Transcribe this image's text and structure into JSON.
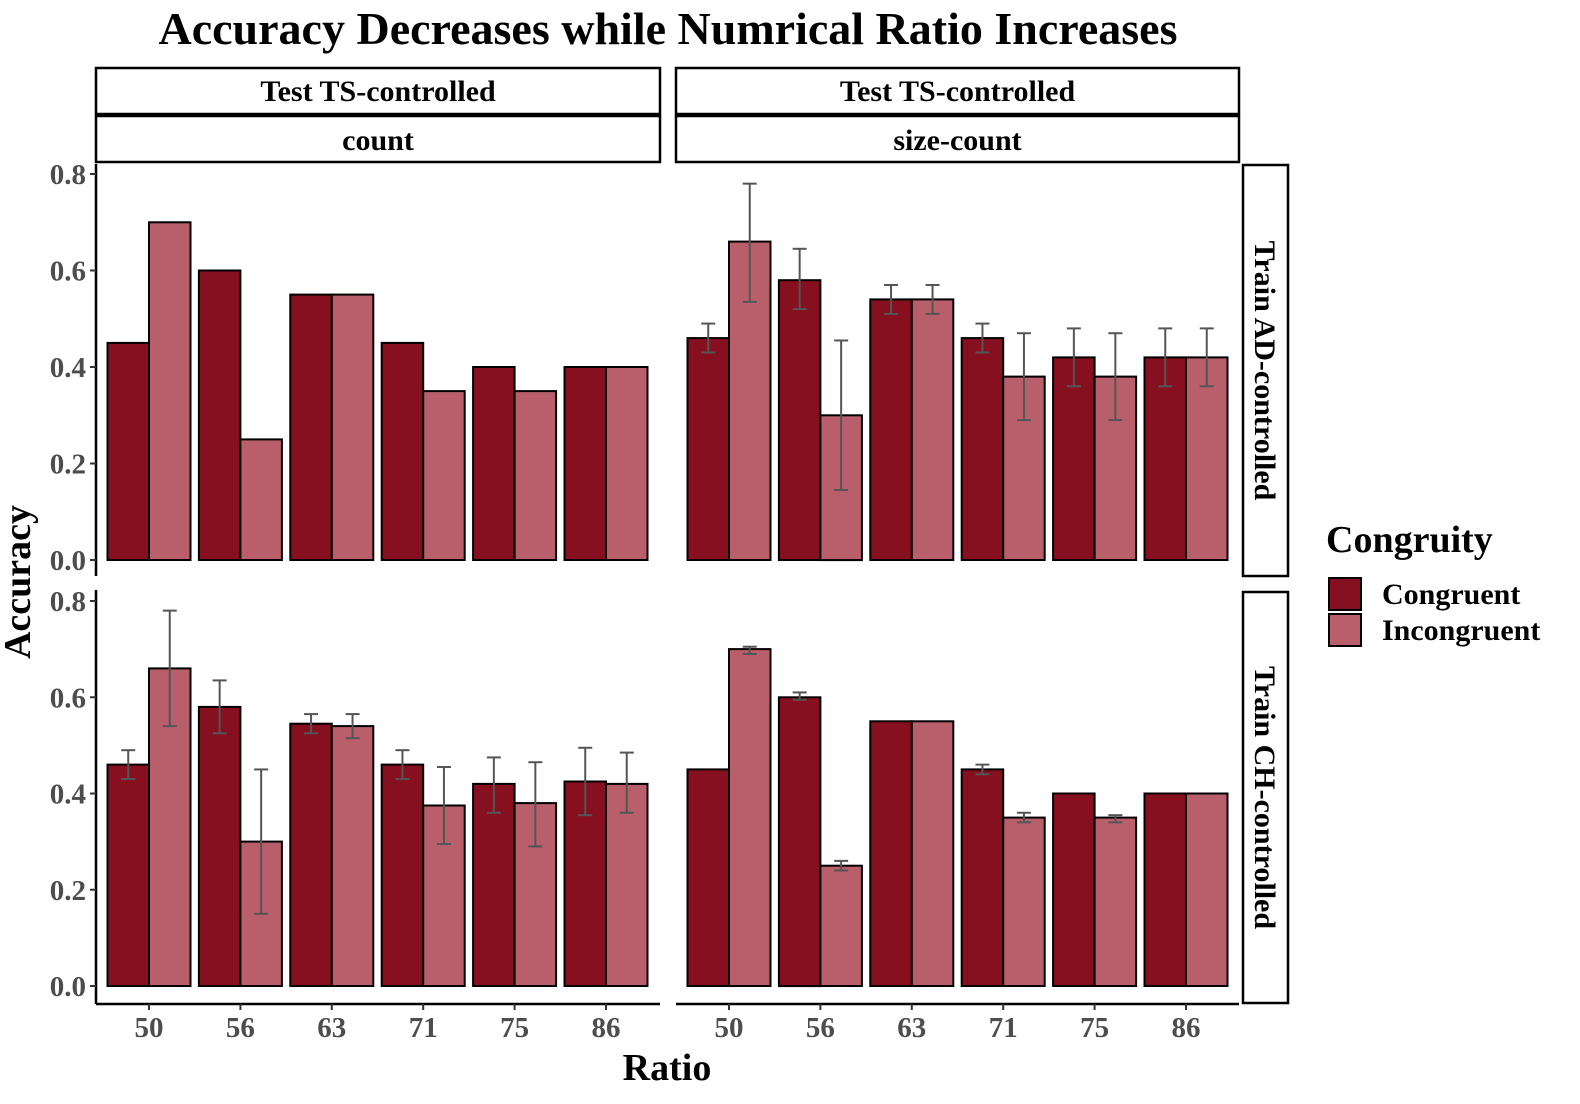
{
  "chart_data": {
    "type": "bar",
    "title": "Accuracy Decreases while Numrical Ratio Increases",
    "xlabel": "Ratio",
    "ylabel": "Accuracy",
    "ylim": [
      0,
      0.8
    ],
    "yticks": [
      "0.0",
      "0.2",
      "0.4",
      "0.6",
      "0.8"
    ],
    "categories": [
      "50",
      "56",
      "63",
      "71",
      "75",
      "86"
    ],
    "legend": {
      "title": "Congruity",
      "position": "right",
      "entries": [
        {
          "name": "Congruent",
          "color": "#86101f"
        },
        {
          "name": "Incongruent",
          "color": "#b95f6c"
        }
      ]
    },
    "panels": [
      {
        "strip_top": [
          "Test TS-controlled",
          "count"
        ],
        "strip_right": "Train AD-controlled",
        "series": [
          {
            "name": "Congruent",
            "values": [
              0.45,
              0.6,
              0.55,
              0.45,
              0.4,
              0.4
            ],
            "error": [
              null,
              null,
              null,
              null,
              null,
              null
            ]
          },
          {
            "name": "Incongruent",
            "values": [
              0.7,
              0.25,
              0.55,
              0.35,
              0.35,
              0.4
            ],
            "error": [
              null,
              null,
              null,
              null,
              null,
              null
            ]
          }
        ]
      },
      {
        "strip_top": [
          "Test TS-controlled",
          "size-count"
        ],
        "strip_right": "Train AD-controlled",
        "series": [
          {
            "name": "Congruent",
            "values": [
              0.46,
              0.58,
              0.54,
              0.46,
              0.42,
              0.42
            ],
            "error": [
              [
                0.43,
                0.49
              ],
              [
                0.52,
                0.645
              ],
              [
                0.51,
                0.57
              ],
              [
                0.43,
                0.49
              ],
              [
                0.36,
                0.48
              ],
              [
                0.36,
                0.48
              ]
            ]
          },
          {
            "name": "Incongruent",
            "values": [
              0.66,
              0.3,
              0.54,
              0.38,
              0.38,
              0.42
            ],
            "error": [
              [
                0.535,
                0.78
              ],
              [
                0.145,
                0.455
              ],
              [
                0.51,
                0.57
              ],
              [
                0.29,
                0.47
              ],
              [
                0.29,
                0.47
              ],
              [
                0.36,
                0.48
              ]
            ]
          }
        ]
      },
      {
        "strip_top": [
          "Test TS-controlled",
          "count"
        ],
        "strip_right": "Train CH-controlled",
        "series": [
          {
            "name": "Congruent",
            "values": [
              0.46,
              0.58,
              0.545,
              0.46,
              0.42,
              0.425
            ],
            "error": [
              [
                0.43,
                0.49
              ],
              [
                0.525,
                0.635
              ],
              [
                0.525,
                0.565
              ],
              [
                0.43,
                0.49
              ],
              [
                0.36,
                0.475
              ],
              [
                0.355,
                0.495
              ]
            ]
          },
          {
            "name": "Incongruent",
            "values": [
              0.66,
              0.3,
              0.54,
              0.375,
              0.38,
              0.42
            ],
            "error": [
              [
                0.54,
                0.78
              ],
              [
                0.15,
                0.45
              ],
              [
                0.515,
                0.565
              ],
              [
                0.295,
                0.455
              ],
              [
                0.29,
                0.465
              ],
              [
                0.36,
                0.485
              ]
            ]
          }
        ]
      },
      {
        "strip_top": [
          "Test TS-controlled",
          "size-count"
        ],
        "strip_right": "Train CH-controlled",
        "series": [
          {
            "name": "Congruent",
            "values": [
              0.45,
              0.6,
              0.55,
              0.45,
              0.4,
              0.4
            ],
            "error": [
              null,
              [
                0.595,
                0.61
              ],
              null,
              [
                0.44,
                0.46
              ],
              null,
              null
            ]
          },
          {
            "name": "Incongruent",
            "values": [
              0.7,
              0.25,
              0.55,
              0.35,
              0.35,
              0.4
            ],
            "error": [
              [
                0.69,
                0.705
              ],
              [
                0.24,
                0.26
              ],
              null,
              [
                0.34,
                0.36
              ],
              [
                0.34,
                0.355
              ],
              null
            ]
          }
        ]
      }
    ]
  }
}
